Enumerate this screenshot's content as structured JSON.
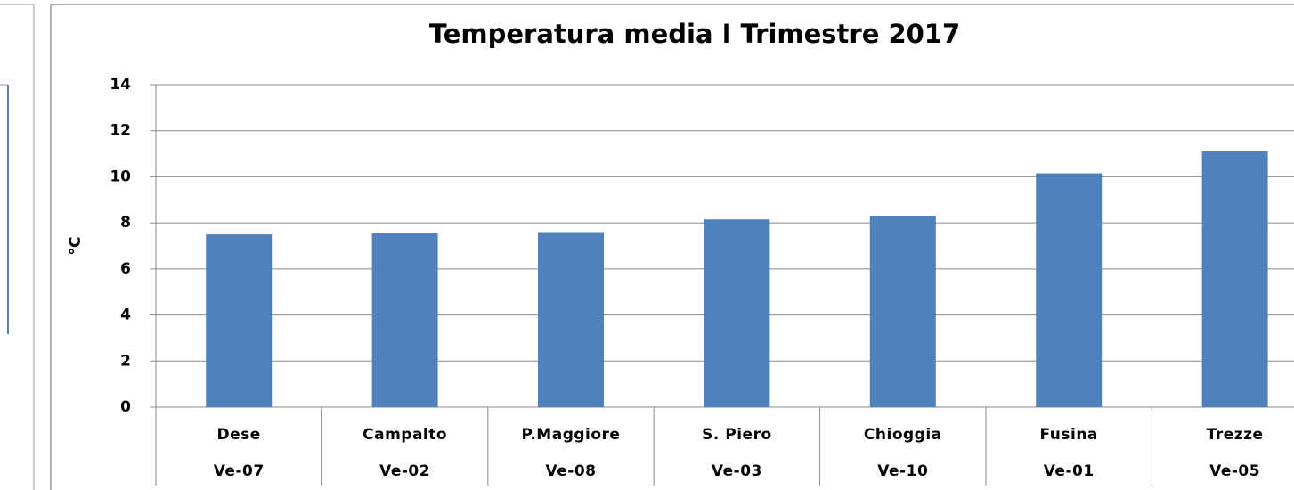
{
  "chart_data": {
    "type": "bar",
    "title": "Temperatura media I Trimestre 2017",
    "y_label": "°C",
    "categories": [
      "Dese",
      "Campalto",
      "P.Maggiore",
      "S. Piero",
      "Chioggia",
      "Fusina",
      "Trezze"
    ],
    "categories2": [
      "Ve-07",
      "Ve-02",
      "Ve-08",
      "Ve-03",
      "Ve-10",
      "Ve-01",
      "Ve-05"
    ],
    "values": [
      7.5,
      7.55,
      7.6,
      8.15,
      8.3,
      10.15,
      11.1
    ],
    "color": "#4f81bd",
    "ylim": [
      0,
      14
    ],
    "yticks": [
      0,
      2,
      4,
      6,
      8,
      10,
      12,
      14
    ],
    "grid": true
  }
}
